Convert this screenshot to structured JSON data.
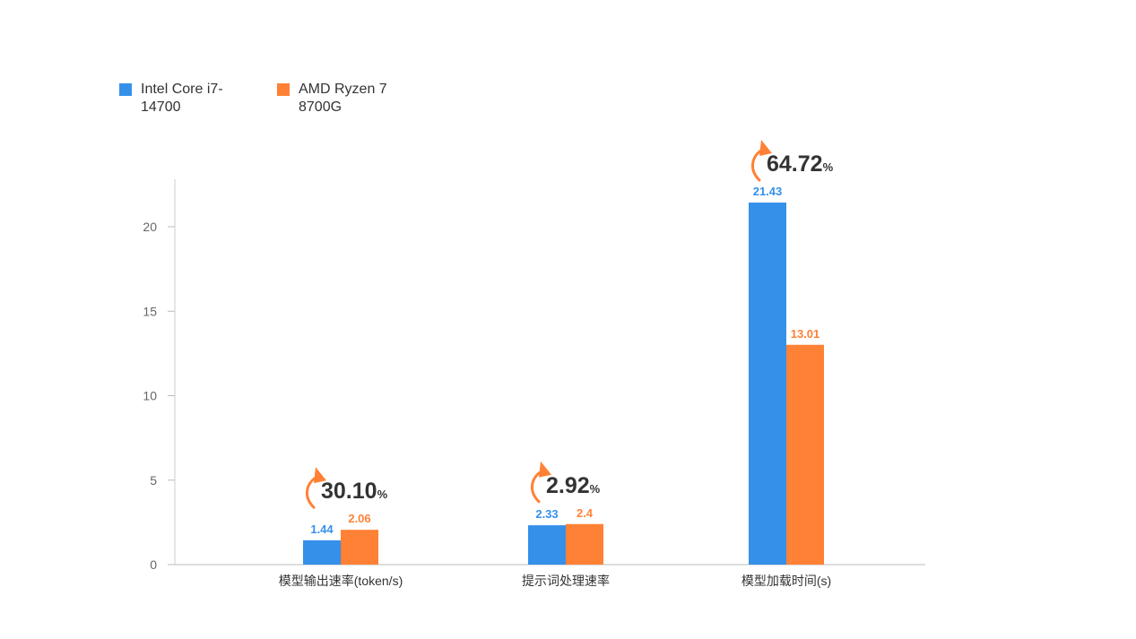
{
  "chart_data": {
    "type": "bar",
    "categories": [
      "模型输出速率(token/s)",
      "提示词处理速率",
      "模型加载时间(s)"
    ],
    "series": [
      {
        "name": "Intel Core i7-14700",
        "values": [
          1.44,
          2.33,
          21.43
        ],
        "color": "#3590EA"
      },
      {
        "name": "AMD Ryzen 7 8700G",
        "values": [
          2.06,
          2.4,
          13.01
        ],
        "color": "#FF8135"
      }
    ],
    "value_labels": [
      [
        "1.44",
        "2.33",
        "21.43"
      ],
      [
        "2.06",
        "2.4",
        "13.01"
      ]
    ],
    "annotations": [
      {
        "number": "30.10",
        "unit": "%"
      },
      {
        "number": "2.92",
        "unit": "%"
      },
      {
        "number": "64.72",
        "unit": "%"
      }
    ],
    "yticks": [
      0,
      5,
      10,
      15,
      20
    ],
    "ylim": [
      0,
      23
    ],
    "title": "",
    "xlabel": "",
    "ylabel": "",
    "grid": false,
    "legend_position": "top-left",
    "annotation_color": "#FF8135",
    "annotation_text_color": "#333333"
  },
  "legend": {
    "intel_label": "Intel Core i7-14700",
    "amd_label": "AMD Ryzen 7 8700G"
  }
}
